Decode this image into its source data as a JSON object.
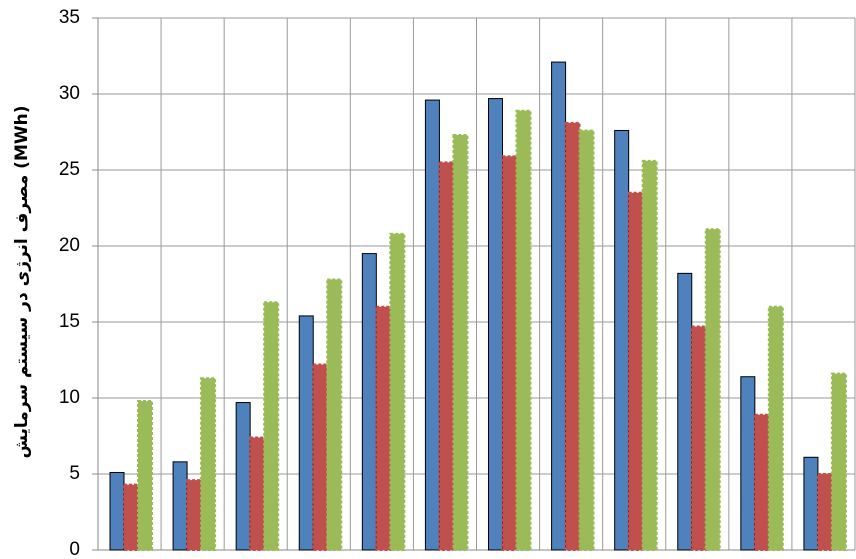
{
  "chart_data": {
    "type": "bar",
    "y_label": "مصرف انرژی در سیستم سرمایش (MWh)",
    "categories": [
      null,
      null,
      null,
      null,
      null,
      null,
      null,
      null,
      null,
      null,
      null,
      null
    ],
    "series": [
      {
        "color": "#4f81bd",
        "values": [
          5.1,
          5.8,
          9.7,
          15.4,
          19.5,
          29.6,
          29.7,
          32.1,
          27.6,
          18.2,
          11.4,
          6.1
        ]
      },
      {
        "color": "#c0504d",
        "values": [
          4.3,
          4.6,
          7.4,
          12.2,
          16.0,
          25.5,
          25.9,
          28.1,
          23.5,
          14.7,
          8.9,
          5.0
        ]
      },
      {
        "color": "#9bbb59",
        "values": [
          9.8,
          11.3,
          16.3,
          17.8,
          20.8,
          27.3,
          28.9,
          27.6,
          25.6,
          21.1,
          16.0,
          11.6
        ]
      }
    ],
    "ylim": [
      0,
      35
    ],
    "yticks": [
      0,
      5,
      10,
      15,
      20,
      25,
      30,
      35
    ],
    "grid": true
  }
}
